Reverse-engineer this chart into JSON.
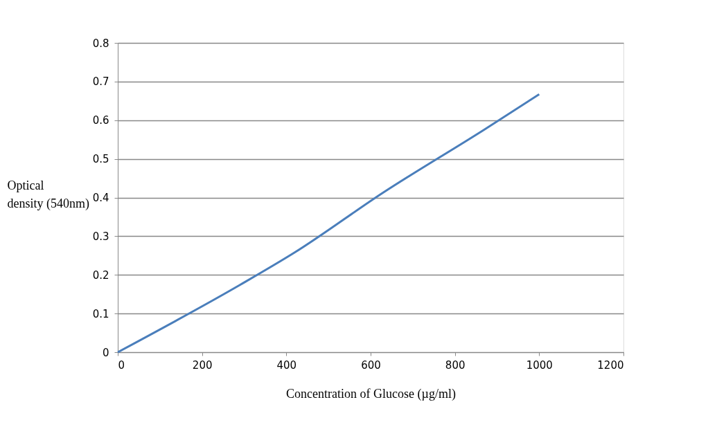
{
  "chart_data": {
    "type": "line",
    "xlabel": "Concentration of Glucose (µg/ml)",
    "ylabel": "Optical density (540nm)",
    "x": [
      0,
      290,
      420,
      630,
      870,
      1000
    ],
    "series": [
      {
        "color": "#4a7ebb",
        "values": [
          0,
          0.174,
          0.258,
          0.413,
          0.576,
          0.667
        ]
      }
    ],
    "xlim": [
      0,
      1200
    ],
    "xticks": [
      0,
      200,
      400,
      600,
      800,
      1000,
      1200
    ],
    "ylim": [
      0,
      0.8
    ],
    "yticks": [
      0,
      0.1,
      0.2,
      0.3,
      0.4,
      0.5,
      0.6,
      0.7,
      0.8
    ],
    "grid": "y",
    "marker": "none",
    "line_style": "solid"
  }
}
